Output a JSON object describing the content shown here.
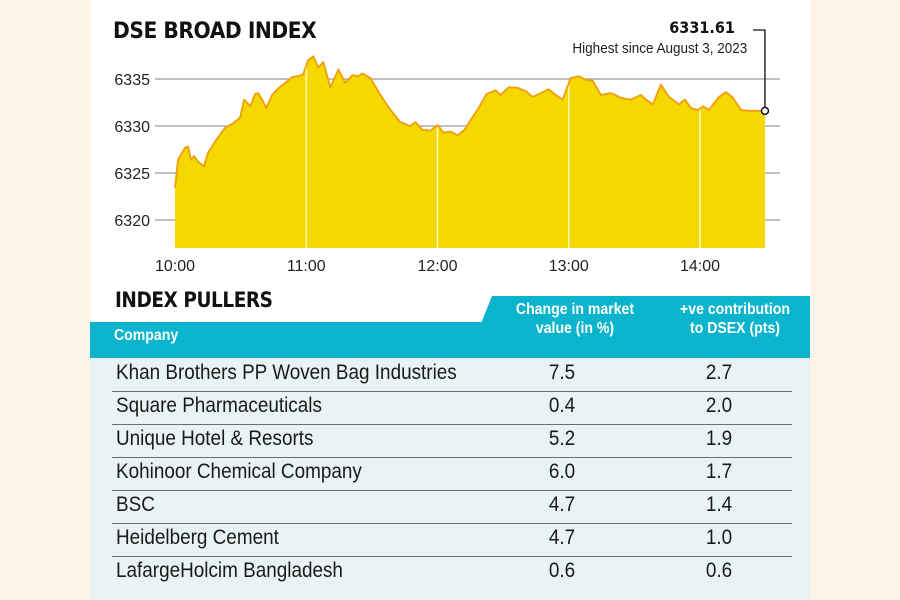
{
  "chart_data": {
    "type": "area",
    "title": "DSE BROAD INDEX",
    "xlabel": "",
    "ylabel": "",
    "x_unit": "minutes since 10:00",
    "xlim": [
      0,
      270
    ],
    "ylim": [
      6317,
      6338
    ],
    "y_ticks": [
      6335,
      6330,
      6325,
      6320
    ],
    "y_tick_labels": [
      "6335",
      "6330",
      "6325",
      "6320"
    ],
    "x_ticks": [
      0,
      60,
      120,
      180,
      240
    ],
    "x_tick_labels": [
      "10:00",
      "11:00",
      "12:00",
      "13:00",
      "14:00"
    ],
    "grid": "horizontal",
    "colors": {
      "fill": "#f5d800",
      "line": "#f0a20f",
      "grid": "#9a9a9a",
      "vgrid": "#fff8c0"
    },
    "annotation": {
      "value": "6331.61",
      "note": "Highest since August 3, 2023",
      "x": 269.7,
      "y": 6331.61
    },
    "series": [
      {
        "name": "DSEX",
        "x": [
          0,
          1.4,
          4.6,
          6,
          7.3,
          8.7,
          10.5,
          13.3,
          15,
          18.8,
          22.9,
          26.6,
          29.8,
          31.6,
          34.4,
          36.6,
          38,
          39.8,
          41.7,
          44.4,
          47.2,
          50.4,
          53.6,
          56.3,
          58.6,
          60.9,
          63.2,
          65.5,
          67.8,
          71,
          74.7,
          77.9,
          81.1,
          83.8,
          85.6,
          89.3,
          93.9,
          98.5,
          103,
          107.6,
          109.9,
          113.1,
          116.8,
          120,
          122.7,
          126,
          129.2,
          132.4,
          135.1,
          138.8,
          142.4,
          146.6,
          148.9,
          152.5,
          156.2,
          160.3,
          163.5,
          167.2,
          170.8,
          174,
          177.2,
          180.9,
          184.6,
          187.8,
          191,
          194.7,
          199.3,
          203.8,
          208.4,
          213,
          215.3,
          218.5,
          222.1,
          225.8,
          230.4,
          233.1,
          235.9,
          239.1,
          241.4,
          244.1,
          248.7,
          251.9,
          254.7,
          258.8,
          262.4,
          269.7
        ],
        "y": [
          6323.4,
          6326.4,
          6327.7,
          6327.8,
          6326.4,
          6326.8,
          6326.2,
          6325.7,
          6327.1,
          6328.5,
          6329.8,
          6330.3,
          6330.9,
          6332.8,
          6332.1,
          6333.4,
          6333.5,
          6332.8,
          6331.9,
          6333.3,
          6334.0,
          6334.6,
          6335.2,
          6335.3,
          6335.5,
          6337.0,
          6337.4,
          6336.2,
          6336.8,
          6334.1,
          6336.0,
          6334.6,
          6335.4,
          6335.3,
          6335.6,
          6335.1,
          6333.3,
          6331.7,
          6330.4,
          6330.0,
          6330.4,
          6329.6,
          6329.5,
          6330.1,
          6329.3,
          6329.4,
          6329.0,
          6329.6,
          6330.6,
          6331.9,
          6333.4,
          6333.8,
          6333.3,
          6334.1,
          6334.1,
          6333.7,
          6333.1,
          6333.5,
          6333.9,
          6333.3,
          6332.8,
          6335.1,
          6335.3,
          6334.9,
          6334.8,
          6333.3,
          6333.5,
          6333.0,
          6332.8,
          6333.3,
          6332.8,
          6332.3,
          6334.4,
          6333.1,
          6332.3,
          6332.8,
          6331.9,
          6331.7,
          6332.1,
          6331.7,
          6333.1,
          6333.6,
          6333.1,
          6331.7,
          6331.61,
          6331.61
        ]
      }
    ]
  },
  "table": {
    "title": "INDEX PULLERS",
    "headers": {
      "company": "Company",
      "change": [
        "Change in market",
        "value (in %)"
      ],
      "contribution": [
        "+ve contribution",
        "to DSEX (pts)"
      ]
    },
    "rows": [
      {
        "company": "Khan Brothers PP Woven Bag Industries",
        "change": "7.5",
        "contribution": "2.7"
      },
      {
        "company": "Square Pharmaceuticals",
        "change": "0.4",
        "contribution": "2.0"
      },
      {
        "company": "Unique Hotel & Resorts",
        "change": "5.2",
        "contribution": "1.9"
      },
      {
        "company": "Kohinoor Chemical Company",
        "change": "6.0",
        "contribution": "1.7"
      },
      {
        "company": "BSC",
        "change": "4.7",
        "contribution": "1.4"
      },
      {
        "company": "Heidelberg Cement",
        "change": "4.7",
        "contribution": "1.0"
      },
      {
        "company": "LafargeHolcim Bangladesh",
        "change": "0.6",
        "contribution": "0.6"
      }
    ],
    "colors": {
      "header": "#0ab4cd",
      "body": "#e9f3f4"
    }
  }
}
